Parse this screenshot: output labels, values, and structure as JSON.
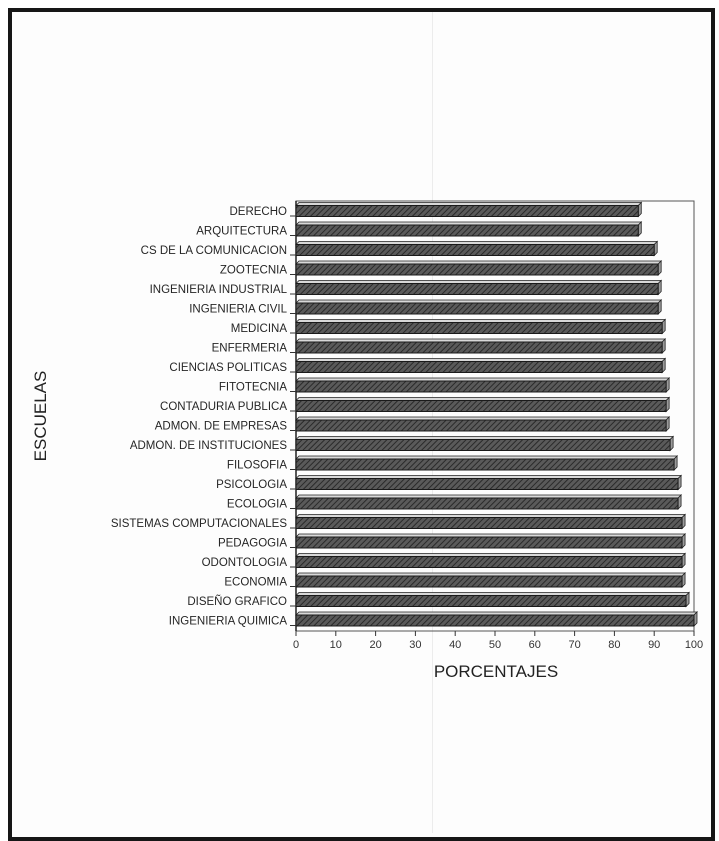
{
  "chart_data": {
    "type": "bar",
    "orientation": "horizontal",
    "title": "",
    "xlabel": "PORCENTAJES",
    "ylabel": "ESCUELAS",
    "xlim": [
      0,
      100
    ],
    "xticks": [
      0,
      10,
      20,
      30,
      40,
      50,
      60,
      70,
      80,
      90,
      100
    ],
    "grid": false,
    "bar_style": "3d hatched",
    "bar_color": "#4a4a4a",
    "categories": [
      "DERECHO",
      "ARQUITECTURA",
      "CS  DE LA COMUNICACION",
      "ZOOTECNIA",
      "INGENIERIA INDUSTRIAL",
      "INGENIERIA CIVIL",
      "MEDICINA",
      "ENFERMERIA",
      "CIENCIAS POLITICAS",
      "FITOTECNIA",
      "CONTADURIA PUBLICA",
      "ADMON. DE EMPRESAS",
      "ADMON. DE INSTITUCIONES",
      "FILOSOFIA",
      "PSICOLOGIA",
      "ECOLOGIA",
      "SISTEMAS COMPUTACIONALES",
      "PEDAGOGIA",
      "ODONTOLOGIA",
      "ECONOMIA",
      "DISEÑO GRAFICO",
      "INGENIERIA QUIMICA"
    ],
    "values": [
      86,
      86,
      90,
      91,
      91,
      91,
      92,
      92,
      92,
      93,
      93,
      93,
      94,
      95,
      96,
      96,
      97,
      97,
      97,
      97,
      98,
      100
    ]
  }
}
